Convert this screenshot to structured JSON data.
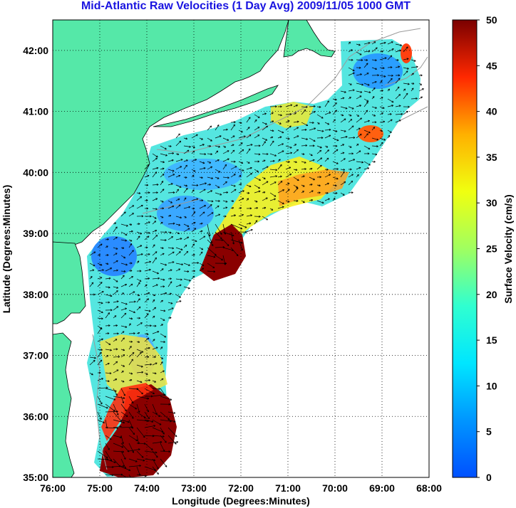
{
  "title": "Mid-Atlantic Raw Velocities (1 Day Avg) 2009/11/05 1000 GMT",
  "x_axis": {
    "label": "Longitude (Degrees:Minutes)",
    "ticks": [
      "76:00",
      "75:00",
      "74:00",
      "73:00",
      "72:00",
      "71:00",
      "70:00",
      "69:00",
      "68:00"
    ],
    "range": [
      -76,
      -68
    ]
  },
  "y_axis": {
    "label": "Latitude (Degrees:Minutes)",
    "ticks": [
      "35:00",
      "36:00",
      "37:00",
      "38:00",
      "39:00",
      "40:00",
      "41:00",
      "42:00"
    ],
    "range": [
      35,
      42.5
    ]
  },
  "colorbar": {
    "label": "Surface Velocity (cm/s)",
    "ticks": [
      "0",
      "5",
      "10",
      "15",
      "20",
      "25",
      "30",
      "35",
      "40",
      "45",
      "50"
    ],
    "range": [
      0,
      50
    ],
    "colormap": "jet"
  },
  "colors": {
    "land": "#55e8a8",
    "coast": "#000000",
    "bathymetry": "#9a9a9a",
    "title": "#1a14e0"
  },
  "grid": "dotted"
}
